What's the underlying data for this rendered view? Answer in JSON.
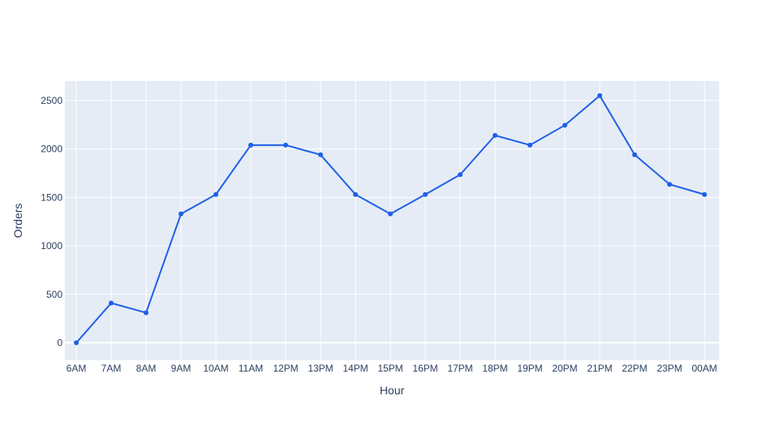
{
  "chart_data": {
    "type": "line",
    "title": "",
    "xlabel": "Hour",
    "ylabel": "Orders",
    "categories": [
      "6AM",
      "7AM",
      "8AM",
      "9AM",
      "10AM",
      "11AM",
      "12PM",
      "13PM",
      "14PM",
      "15PM",
      "16PM",
      "17PM",
      "18PM",
      "19PM",
      "20PM",
      "21PM",
      "22PM",
      "23PM",
      "00AM"
    ],
    "series": [
      {
        "values": [
          0,
          410,
          310,
          1330,
          1530,
          2040,
          2040,
          1940,
          1530,
          1330,
          1530,
          1735,
          2140,
          2040,
          2245,
          2550,
          1940,
          1635,
          1530
        ]
      }
    ],
    "ylim": [
      -180,
      2700
    ],
    "yticks": [
      0,
      500,
      1000,
      1500,
      2000,
      2500
    ],
    "grid": true,
    "legend": "none",
    "colors": {
      "line": "#1f5fe8",
      "plot_bg": "#e5ecf6",
      "grid": "#ffffff",
      "text": "#2a3f5f"
    }
  }
}
